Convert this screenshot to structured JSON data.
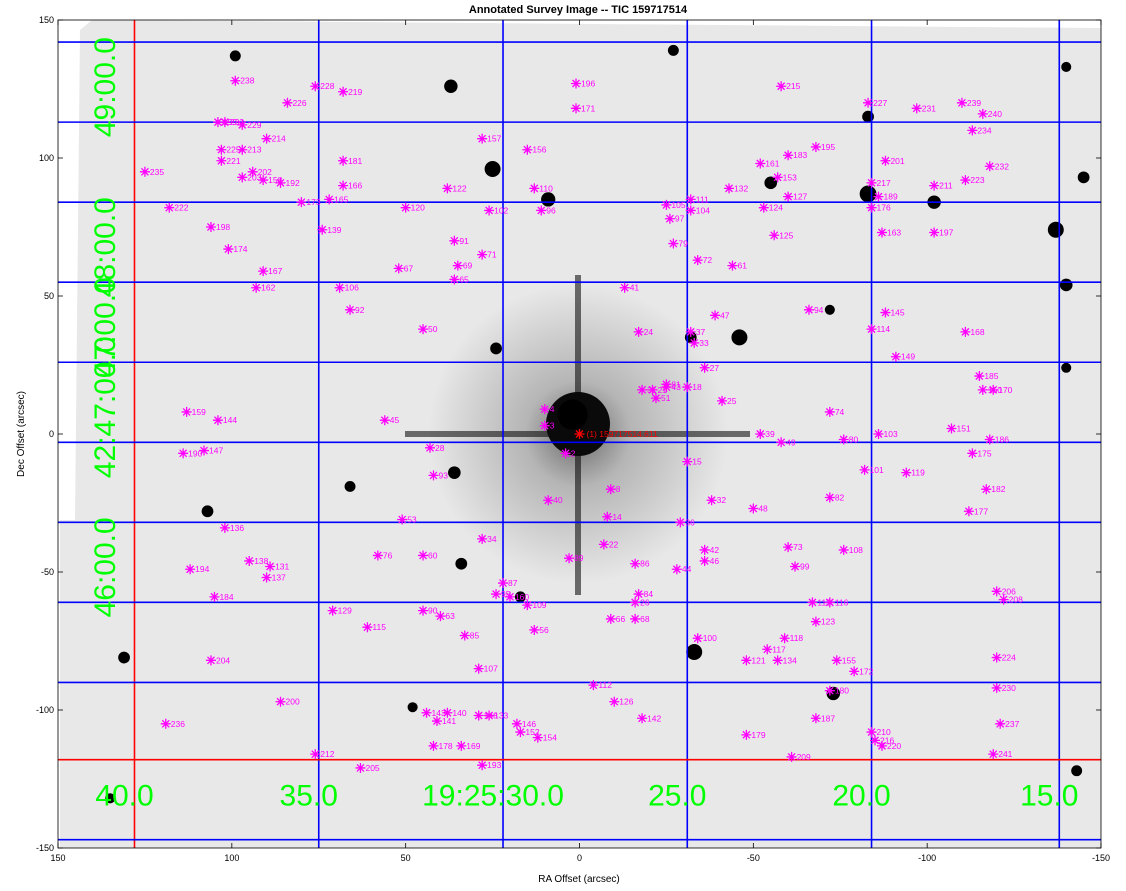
{
  "chart_data": {
    "type": "scatter",
    "title": "Annotated Survey Image -- TIC 159717514",
    "xlabel": "RA Offset (arcsec)",
    "ylabel": "Dec Offset (arcsec)",
    "xlim": [
      150,
      -150
    ],
    "ylim": [
      -150,
      150
    ],
    "x_ticks": [
      150,
      100,
      50,
      0,
      -50,
      -100,
      -150
    ],
    "y_ticks": [
      -150,
      -100,
      -50,
      0,
      50,
      100,
      150
    ],
    "x_tick_labels": [
      "150",
      "100",
      "50",
      "0",
      "-50",
      "-100",
      "-150"
    ],
    "y_tick_labels": [
      "-150",
      "-100",
      "-50",
      "0",
      "50",
      "100",
      "150"
    ],
    "colors": {
      "background": "#ffffff",
      "image_bg": "#e9e9e9",
      "marker": "#ff00ff",
      "target": "#ff0000",
      "grid_blue": "#0000ff",
      "grid_red": "#ff0000",
      "coord_label": "#00ff00",
      "star": "#000000"
    },
    "ra_gridlines": [
      128,
      75,
      22,
      -31,
      -84,
      -138
    ],
    "ra_reference_line": 128,
    "dec_gridlines": [
      142,
      113,
      84,
      55,
      26,
      -3,
      -32,
      -61,
      -90,
      -147
    ],
    "dec_reference_line": -118,
    "ra_coordinate_labels": [
      {
        "text": "40.0",
        "x": 128
      },
      {
        "text": "35.0",
        "x": 75
      },
      {
        "text": "19:25:30.0",
        "x": 22
      },
      {
        "text": "25.0",
        "x": -31
      },
      {
        "text": "20.0",
        "x": -84
      },
      {
        "text": "15.0",
        "x": -138
      }
    ],
    "dec_coordinate_labels": [
      {
        "text": "49:00.0",
        "y": 113
      },
      {
        "text": "48:00.0",
        "y": 55
      },
      {
        "text": "47:00.0",
        "y": 26
      },
      {
        "text": "42:47:00.0",
        "y": -3
      },
      {
        "text": "46:00.0",
        "y": -61
      }
    ],
    "target": {
      "x": 0,
      "y": 0,
      "label": "(1) 159717514.611"
    },
    "sources": [
      {
        "id": "2",
        "x": 4,
        "y": -7
      },
      {
        "id": "3",
        "x": 10,
        "y": 3
      },
      {
        "id": "4",
        "x": 10,
        "y": 9
      },
      {
        "id": "8",
        "x": -9,
        "y": -20
      },
      {
        "id": "14",
        "x": -8,
        "y": -30
      },
      {
        "id": "15",
        "x": -31,
        "y": -10
      },
      {
        "id": "18",
        "x": -31,
        "y": 17
      },
      {
        "id": "21",
        "x": -21,
        "y": 16
      },
      {
        "id": "22",
        "x": -7,
        "y": -40
      },
      {
        "id": "24",
        "x": -17,
        "y": 37
      },
      {
        "id": "25",
        "x": -41,
        "y": 12
      },
      {
        "id": "26",
        "x": -16,
        "y": -61
      },
      {
        "id": "27",
        "x": -36,
        "y": 24
      },
      {
        "id": "28",
        "x": 43,
        "y": -5
      },
      {
        "id": "31",
        "x": -18,
        "y": 16
      },
      {
        "id": "32",
        "x": -38,
        "y": -24
      },
      {
        "id": "33",
        "x": -33,
        "y": 33
      },
      {
        "id": "34",
        "x": 28,
        "y": -38
      },
      {
        "id": "36",
        "x": -29,
        "y": -32
      },
      {
        "id": "37",
        "x": -32,
        "y": 37
      },
      {
        "id": "39",
        "x": -52,
        "y": 0
      },
      {
        "id": "40",
        "x": 9,
        "y": -24
      },
      {
        "id": "41",
        "x": -13,
        "y": 53
      },
      {
        "id": "42",
        "x": -36,
        "y": -42
      },
      {
        "id": "43",
        "x": -25,
        "y": 17
      },
      {
        "id": "44",
        "x": -28,
        "y": -49
      },
      {
        "id": "45",
        "x": 56,
        "y": 5
      },
      {
        "id": "46",
        "x": -36,
        "y": -46
      },
      {
        "id": "47",
        "x": -39,
        "y": 43
      },
      {
        "id": "48",
        "x": -50,
        "y": -27
      },
      {
        "id": "49",
        "x": -58,
        "y": -3
      },
      {
        "id": "50",
        "x": 45,
        "y": 38
      },
      {
        "id": "51",
        "x": -22,
        "y": 13
      },
      {
        "id": "53",
        "x": 51,
        "y": -31
      },
      {
        "id": "56",
        "x": 13,
        "y": -71
      },
      {
        "id": "60",
        "x": 45,
        "y": -44
      },
      {
        "id": "61",
        "x": -44,
        "y": 61
      },
      {
        "id": "63",
        "x": 40,
        "y": -66
      },
      {
        "id": "65",
        "x": 36,
        "y": 56
      },
      {
        "id": "66",
        "x": -9,
        "y": -67
      },
      {
        "id": "67",
        "x": 52,
        "y": 60
      },
      {
        "id": "68",
        "x": -16,
        "y": -67
      },
      {
        "id": "69",
        "x": 35,
        "y": 61
      },
      {
        "id": "71",
        "x": 28,
        "y": 65
      },
      {
        "id": "72",
        "x": -34,
        "y": 63
      },
      {
        "id": "73",
        "x": -60,
        "y": -41
      },
      {
        "id": "74",
        "x": -72,
        "y": 8
      },
      {
        "id": "76",
        "x": 58,
        "y": -44
      },
      {
        "id": "79",
        "x": -27,
        "y": 69
      },
      {
        "id": "80",
        "x": -76,
        "y": -2
      },
      {
        "id": "81",
        "x": -25,
        "y": 18
      },
      {
        "id": "82",
        "x": -72,
        "y": -23
      },
      {
        "id": "84",
        "x": -17,
        "y": -58
      },
      {
        "id": "85",
        "x": 33,
        "y": -73
      },
      {
        "id": "86",
        "x": -16,
        "y": -47
      },
      {
        "id": "87",
        "x": 22,
        "y": -54
      },
      {
        "id": "89",
        "x": 3,
        "y": -45
      },
      {
        "id": "90",
        "x": 45,
        "y": -64
      },
      {
        "id": "91",
        "x": 36,
        "y": 70
      },
      {
        "id": "92",
        "x": 66,
        "y": 45
      },
      {
        "id": "93",
        "x": 42,
        "y": -15
      },
      {
        "id": "94",
        "x": -66,
        "y": 45
      },
      {
        "id": "95",
        "x": 24,
        "y": -58
      },
      {
        "id": "96",
        "x": 11,
        "y": 81
      },
      {
        "id": "97",
        "x": -26,
        "y": 78
      },
      {
        "id": "99",
        "x": -62,
        "y": -48
      },
      {
        "id": "100",
        "x": -34,
        "y": -74
      },
      {
        "id": "101",
        "x": -82,
        "y": -13
      },
      {
        "id": "102",
        "x": 26,
        "y": 81
      },
      {
        "id": "103",
        "x": -86,
        "y": 0
      },
      {
        "id": "104",
        "x": -32,
        "y": 81
      },
      {
        "id": "105",
        "x": -25,
        "y": 83
      },
      {
        "id": "106",
        "x": 69,
        "y": 53
      },
      {
        "id": "107",
        "x": 29,
        "y": -85
      },
      {
        "id": "108",
        "x": -76,
        "y": -42
      },
      {
        "id": "109",
        "x": 15,
        "y": -62
      },
      {
        "id": "110",
        "x": 13,
        "y": 89
      },
      {
        "id": "111",
        "x": -32,
        "y": 85
      },
      {
        "id": "112",
        "x": -4,
        "y": -91
      },
      {
        "id": "113",
        "x": -67,
        "y": -61
      },
      {
        "id": "114",
        "x": -84,
        "y": 38
      },
      {
        "id": "115",
        "x": 61,
        "y": -70
      },
      {
        "id": "116",
        "x": -72,
        "y": -61
      },
      {
        "id": "117",
        "x": -54,
        "y": -78
      },
      {
        "id": "118",
        "x": -59,
        "y": -74
      },
      {
        "id": "119",
        "x": -94,
        "y": -14
      },
      {
        "id": "120",
        "x": 50,
        "y": 82
      },
      {
        "id": "121",
        "x": -48,
        "y": -82
      },
      {
        "id": "122",
        "x": 38,
        "y": 89
      },
      {
        "id": "123",
        "x": -68,
        "y": -68
      },
      {
        "id": "124",
        "x": -53,
        "y": 82
      },
      {
        "id": "125",
        "x": -56,
        "y": 72
      },
      {
        "id": "126",
        "x": -10,
        "y": -97
      },
      {
        "id": "127",
        "x": -60,
        "y": 86
      },
      {
        "id": "129",
        "x": 71,
        "y": -64
      },
      {
        "id": "131",
        "x": 89,
        "y": -48
      },
      {
        "id": "132",
        "x": -43,
        "y": 89
      },
      {
        "id": "133",
        "x": 26,
        "y": -102
      },
      {
        "id": "134",
        "x": -57,
        "y": -82
      },
      {
        "id": "136",
        "x": 102,
        "y": -34
      },
      {
        "id": "137",
        "x": 90,
        "y": -52
      },
      {
        "id": "138",
        "x": 95,
        "y": -46
      },
      {
        "id": "139",
        "x": 74,
        "y": 74
      },
      {
        "id": "140",
        "x": 38,
        "y": -101
      },
      {
        "id": "141",
        "x": 41,
        "y": -104
      },
      {
        "id": "142",
        "x": -18,
        "y": -103
      },
      {
        "id": "143",
        "x": 44,
        "y": -101
      },
      {
        "id": "144",
        "x": 104,
        "y": 5
      },
      {
        "id": "145",
        "x": -88,
        "y": 44
      },
      {
        "id": "146",
        "x": 18,
        "y": -105
      },
      {
        "id": "147",
        "x": 108,
        "y": -6
      },
      {
        "id": "148",
        "x": 29,
        "y": -102
      },
      {
        "id": "149",
        "x": -91,
        "y": 28
      },
      {
        "id": "150",
        "x": -116,
        "y": 16
      },
      {
        "id": "151",
        "x": -107,
        "y": 2
      },
      {
        "id": "152",
        "x": 17,
        "y": -108
      },
      {
        "id": "153",
        "x": -57,
        "y": 93
      },
      {
        "id": "154",
        "x": 12,
        "y": -110
      },
      {
        "id": "155",
        "x": -74,
        "y": -82
      },
      {
        "id": "156",
        "x": 15,
        "y": 103
      },
      {
        "id": "157",
        "x": 28,
        "y": 107
      },
      {
        "id": "158",
        "x": 91,
        "y": 92
      },
      {
        "id": "159",
        "x": 113,
        "y": 8
      },
      {
        "id": "160",
        "x": 20,
        "y": -59
      },
      {
        "id": "161",
        "x": -52,
        "y": 98
      },
      {
        "id": "162",
        "x": 93,
        "y": 53
      },
      {
        "id": "163",
        "x": -87,
        "y": 73
      },
      {
        "id": "165",
        "x": 72,
        "y": 85
      },
      {
        "id": "166",
        "x": 68,
        "y": 90
      },
      {
        "id": "167",
        "x": 91,
        "y": 59
      },
      {
        "id": "168",
        "x": -111,
        "y": 37
      },
      {
        "id": "169",
        "x": 34,
        "y": -113
      },
      {
        "id": "170",
        "x": -119,
        "y": 16
      },
      {
        "id": "171",
        "x": 1,
        "y": 118
      },
      {
        "id": "172",
        "x": -79,
        "y": -86
      },
      {
        "id": "173",
        "x": 80,
        "y": 84
      },
      {
        "id": "174",
        "x": 101,
        "y": 67
      },
      {
        "id": "175",
        "x": -113,
        "y": -7
      },
      {
        "id": "176",
        "x": -84,
        "y": 82
      },
      {
        "id": "177",
        "x": -112,
        "y": -28
      },
      {
        "id": "178",
        "x": 42,
        "y": -113
      },
      {
        "id": "179",
        "x": -48,
        "y": -109
      },
      {
        "id": "180",
        "x": -72,
        "y": -93
      },
      {
        "id": "181",
        "x": 68,
        "y": 99
      },
      {
        "id": "182",
        "x": -117,
        "y": -20
      },
      {
        "id": "183",
        "x": -60,
        "y": 101
      },
      {
        "id": "184",
        "x": 105,
        "y": -59
      },
      {
        "id": "185",
        "x": -115,
        "y": 21
      },
      {
        "id": "186",
        "x": -118,
        "y": -2
      },
      {
        "id": "187",
        "x": -68,
        "y": -103
      },
      {
        "id": "189",
        "x": -86,
        "y": 86
      },
      {
        "id": "190",
        "x": 114,
        "y": -7
      },
      {
        "id": "192",
        "x": 86,
        "y": 91
      },
      {
        "id": "193",
        "x": 28,
        "y": -120
      },
      {
        "id": "194",
        "x": 112,
        "y": -49
      },
      {
        "id": "195",
        "x": -68,
        "y": 104
      },
      {
        "id": "196",
        "x": 1,
        "y": 127
      },
      {
        "id": "197",
        "x": -102,
        "y": 73
      },
      {
        "id": "198",
        "x": 106,
        "y": 75
      },
      {
        "id": "199",
        "x": 104,
        "y": 113
      },
      {
        "id": "200",
        "x": 86,
        "y": -97
      },
      {
        "id": "201",
        "x": -88,
        "y": 99
      },
      {
        "id": "202",
        "x": 94,
        "y": 95
      },
      {
        "id": "203",
        "x": 97,
        "y": 93
      },
      {
        "id": "204",
        "x": 106,
        "y": -82
      },
      {
        "id": "205",
        "x": 63,
        "y": -121
      },
      {
        "id": "206",
        "x": -120,
        "y": -57
      },
      {
        "id": "208",
        "x": -122,
        "y": -60
      },
      {
        "id": "209",
        "x": -61,
        "y": -117
      },
      {
        "id": "210",
        "x": -84,
        "y": -108
      },
      {
        "id": "211",
        "x": -102,
        "y": 90
      },
      {
        "id": "212",
        "x": 76,
        "y": -116
      },
      {
        "id": "213",
        "x": 97,
        "y": 103
      },
      {
        "id": "214",
        "x": 90,
        "y": 107
      },
      {
        "id": "215",
        "x": -58,
        "y": 126
      },
      {
        "id": "216",
        "x": -85,
        "y": -111
      },
      {
        "id": "217",
        "x": -84,
        "y": 91
      },
      {
        "id": "219",
        "x": 68,
        "y": 124
      },
      {
        "id": "220",
        "x": -87,
        "y": -113
      },
      {
        "id": "221",
        "x": 103,
        "y": 99
      },
      {
        "id": "222",
        "x": 118,
        "y": 82
      },
      {
        "id": "223",
        "x": -111,
        "y": 92
      },
      {
        "id": "224",
        "x": -120,
        "y": -81
      },
      {
        "id": "225",
        "x": 103,
        "y": 103
      },
      {
        "id": "226",
        "x": 84,
        "y": 120
      },
      {
        "id": "227",
        "x": -83,
        "y": 120
      },
      {
        "id": "228",
        "x": 76,
        "y": 126
      },
      {
        "id": "229",
        "x": 97,
        "y": 112
      },
      {
        "id": "230",
        "x": -120,
        "y": -92
      },
      {
        "id": "231",
        "x": -97,
        "y": 118
      },
      {
        "id": "232",
        "x": -118,
        "y": 97
      },
      {
        "id": "233",
        "x": 102,
        "y": 113
      },
      {
        "id": "234",
        "x": -113,
        "y": 110
      },
      {
        "id": "235",
        "x": 125,
        "y": 95
      },
      {
        "id": "236",
        "x": 119,
        "y": -105
      },
      {
        "id": "237",
        "x": -121,
        "y": -105
      },
      {
        "id": "238",
        "x": 99,
        "y": 128
      },
      {
        "id": "239",
        "x": -110,
        "y": 120
      },
      {
        "id": "240",
        "x": -116,
        "y": 116
      },
      {
        "id": "241",
        "x": -119,
        "y": -116
      }
    ],
    "stars": [
      {
        "x": 2,
        "y": 7,
        "r": 3.6
      },
      {
        "x": 24,
        "y": 31,
        "r": 1.4
      },
      {
        "x": 37,
        "y": 126,
        "r": 1.6
      },
      {
        "x": 25,
        "y": 96,
        "r": 1.9
      },
      {
        "x": 9,
        "y": 85,
        "r": 1.7
      },
      {
        "x": -83,
        "y": 87,
        "r": 2.0
      },
      {
        "x": -102,
        "y": 84,
        "r": 1.6
      },
      {
        "x": -137,
        "y": 74,
        "r": 1.9
      },
      {
        "x": -140,
        "y": 54,
        "r": 1.5
      },
      {
        "x": -145,
        "y": 93,
        "r": 1.4
      },
      {
        "x": -46,
        "y": 35,
        "r": 1.9
      },
      {
        "x": -32,
        "y": 35,
        "r": 1.4
      },
      {
        "x": -33,
        "y": -79,
        "r": 1.9
      },
      {
        "x": -73,
        "y": -94,
        "r": 1.6
      },
      {
        "x": 36,
        "y": -14,
        "r": 1.5
      },
      {
        "x": 131,
        "y": -81,
        "r": 1.4
      },
      {
        "x": 107,
        "y": -28,
        "r": 1.4
      },
      {
        "x": 66,
        "y": -19,
        "r": 1.3
      },
      {
        "x": 34,
        "y": -47,
        "r": 1.4
      },
      {
        "x": -27,
        "y": 139,
        "r": 1.3
      },
      {
        "x": -83,
        "y": 115,
        "r": 1.4
      },
      {
        "x": -55,
        "y": 91,
        "r": 1.5
      },
      {
        "x": 99,
        "y": 137,
        "r": 1.3
      },
      {
        "x": -143,
        "y": -122,
        "r": 1.3
      },
      {
        "x": 17,
        "y": -59,
        "r": 1.3
      },
      {
        "x": 135,
        "y": -132,
        "r": 1.2
      },
      {
        "x": -140,
        "y": 133,
        "r": 1.2
      },
      {
        "x": -72,
        "y": 45,
        "r": 1.2
      },
      {
        "x": -140,
        "y": 24,
        "r": 1.2
      },
      {
        "x": 48,
        "y": -99,
        "r": 1.2
      }
    ]
  }
}
